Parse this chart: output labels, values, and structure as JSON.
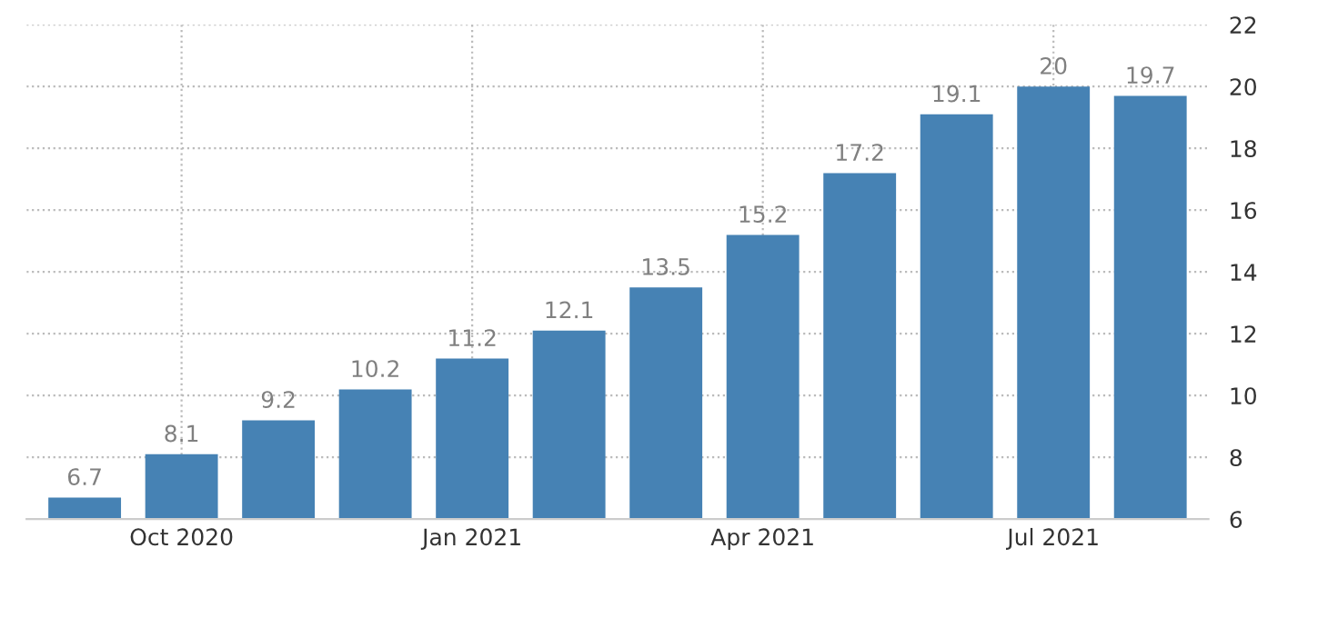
{
  "chart_data": {
    "type": "bar",
    "categories": [
      null,
      "Oct 2020",
      null,
      null,
      "Jan 2021",
      null,
      null,
      "Apr 2021",
      null,
      null,
      "Jul 2021",
      null
    ],
    "values": [
      6.7,
      8.1,
      9.2,
      10.2,
      11.2,
      12.1,
      13.5,
      15.2,
      17.2,
      19.1,
      20,
      19.7
    ],
    "color": "#4682b4",
    "ylim": [
      6,
      22
    ],
    "yticks": [
      6,
      8,
      10,
      12,
      14,
      16,
      18,
      20,
      22
    ],
    "grid": true,
    "data_labels": true
  }
}
